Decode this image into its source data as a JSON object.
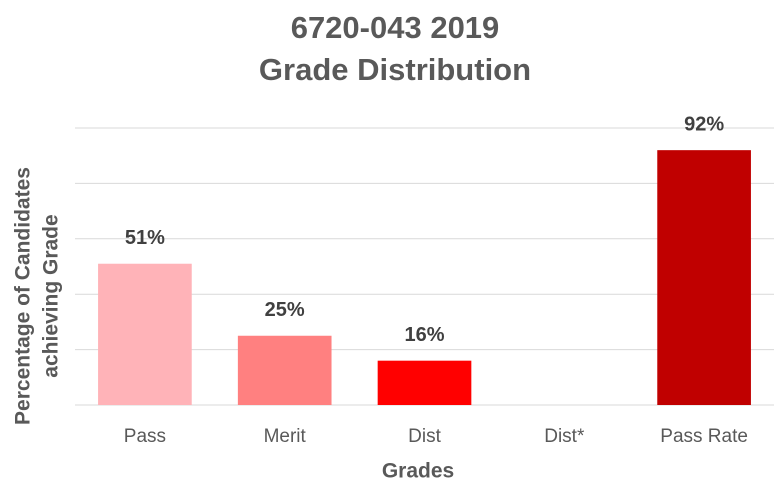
{
  "chart_data": {
    "type": "bar",
    "title": [
      "6720-043 2019",
      "Grade Distribution"
    ],
    "y_label": [
      "Percentage of Candidates",
      "achieving Grade"
    ],
    "x_label": "Grades",
    "categories": [
      "Pass",
      "Merit",
      "Dist",
      "Dist*",
      "Pass Rate"
    ],
    "values": [
      51,
      25,
      16,
      null,
      92
    ],
    "value_labels": [
      "51%",
      "25%",
      "16%",
      null,
      "92%"
    ],
    "colors": [
      "#ffb3b8",
      "#ff8080",
      "#ff0000",
      null,
      "#c00000"
    ],
    "ylim": [
      0,
      100
    ],
    "yticks": [
      0,
      20,
      40,
      60,
      80,
      100
    ],
    "grid": true
  }
}
